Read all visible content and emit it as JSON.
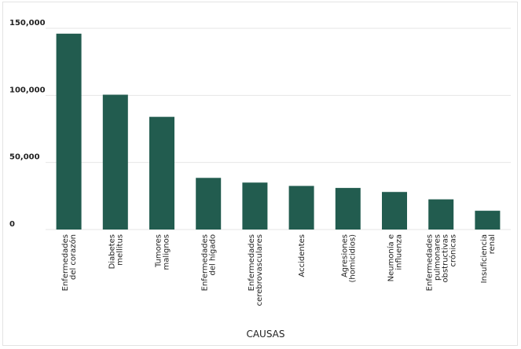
{
  "chart_data": {
    "type": "bar",
    "xlabel": "CAUSAS",
    "ylabel": "",
    "ylim": [
      0,
      150000
    ],
    "grid": true,
    "yticks": [
      {
        "value": 0,
        "label": "0"
      },
      {
        "value": 50000,
        "label": "50,000"
      },
      {
        "value": 100000,
        "label": "100,000"
      },
      {
        "value": 150000,
        "label": "150,000"
      }
    ],
    "categories": [
      [
        "Enfermedades",
        "del corazón"
      ],
      [
        "Diabetes",
        "mellitus"
      ],
      [
        "Tumores",
        "malignos"
      ],
      [
        "Enfermedades",
        "del hígado"
      ],
      [
        "Enfermedades",
        "cerebrovasculares"
      ],
      [
        "Accidentes"
      ],
      [
        "Agresiones",
        "(homicidios)"
      ],
      [
        "Neumonía e",
        "influenza"
      ],
      [
        "Enfermedades",
        "pulmonares",
        "obstructivas",
        "crónicas"
      ],
      [
        "Insuficiencia",
        "renal"
      ]
    ],
    "values": [
      146000,
      100500,
      84000,
      38500,
      35000,
      32500,
      31000,
      28000,
      22500,
      14000
    ],
    "bar_color": "#225c4f",
    "grid_color": "#e6e6e6"
  }
}
